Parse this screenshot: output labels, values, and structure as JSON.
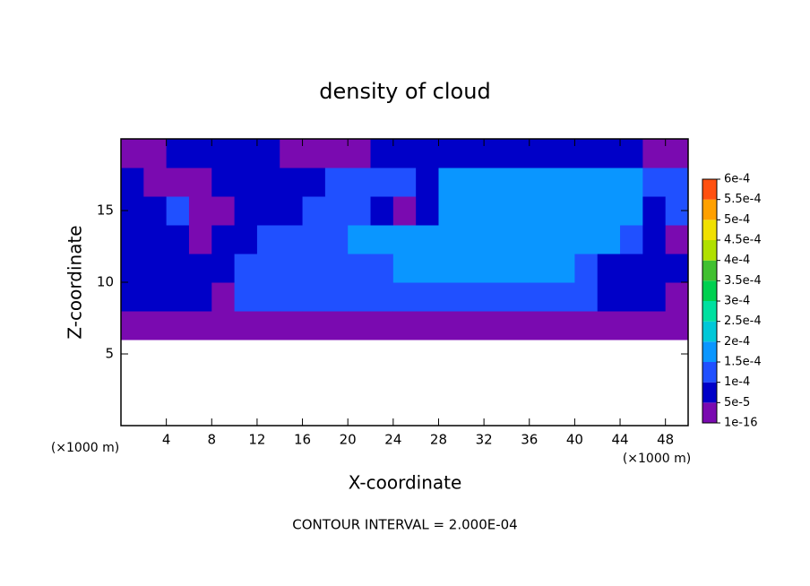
{
  "chart_data": {
    "type": "heatmap",
    "title": "density of cloud",
    "x_label": "X-coordinate",
    "y_label": "Z-coordinate",
    "x_unit": "(×1000 m)",
    "y_unit": "(×1000 m)",
    "footer": "CONTOUR INTERVAL = 2.000E-04",
    "xlim": [
      0,
      50
    ],
    "ylim": [
      0,
      20
    ],
    "xticks": [
      4,
      8,
      12,
      16,
      20,
      24,
      28,
      32,
      36,
      40,
      44,
      48
    ],
    "yticks": [
      5,
      10,
      15
    ],
    "x": [
      1,
      3,
      5,
      7,
      9,
      11,
      13,
      15,
      17,
      19,
      21,
      23,
      25,
      27,
      29,
      31,
      33,
      35,
      37,
      39,
      41,
      43,
      45,
      47,
      49
    ],
    "y": [
      1,
      3,
      5,
      7,
      9,
      11,
      13,
      15,
      17,
      19
    ],
    "z": [
      [
        null,
        null,
        null,
        null,
        null,
        null,
        null,
        null,
        null,
        null,
        null,
        null,
        null,
        null,
        null,
        null,
        null,
        null,
        null,
        null,
        null,
        null,
        null,
        null,
        null
      ],
      [
        null,
        null,
        null,
        null,
        null,
        null,
        null,
        null,
        null,
        null,
        null,
        null,
        null,
        null,
        null,
        null,
        null,
        null,
        null,
        null,
        null,
        null,
        null,
        null,
        null
      ],
      [
        null,
        null,
        null,
        null,
        null,
        null,
        null,
        null,
        null,
        null,
        null,
        null,
        null,
        null,
        null,
        null,
        null,
        null,
        null,
        null,
        null,
        null,
        null,
        null,
        null
      ],
      [
        3e-05,
        3e-05,
        3e-05,
        3e-05,
        3e-05,
        3e-05,
        3e-05,
        3e-05,
        3e-05,
        3e-05,
        3e-05,
        3e-05,
        3e-05,
        3e-05,
        3e-05,
        3e-05,
        3e-05,
        3e-05,
        3e-05,
        3e-05,
        3e-05,
        3e-05,
        3e-05,
        3e-05,
        3e-05
      ],
      [
        7e-05,
        7e-05,
        7e-05,
        7e-05,
        3e-05,
        0.00012,
        0.00012,
        0.00012,
        0.00012,
        0.00012,
        0.00012,
        0.00012,
        0.00012,
        0.00012,
        0.00012,
        0.00012,
        0.00012,
        0.00012,
        0.00012,
        0.00012,
        0.00012,
        7e-05,
        7e-05,
        7e-05,
        3e-05
      ],
      [
        7e-05,
        7e-05,
        7e-05,
        7e-05,
        7e-05,
        0.00012,
        0.00012,
        0.00012,
        0.00012,
        0.00012,
        0.00012,
        0.00012,
        0.00017,
        0.00017,
        0.00017,
        0.00017,
        0.00017,
        0.00017,
        0.00017,
        0.00017,
        0.00012,
        7e-05,
        7e-05,
        7e-05,
        7e-05
      ],
      [
        7e-05,
        7e-05,
        7e-05,
        3e-05,
        7e-05,
        7e-05,
        0.00012,
        0.00012,
        0.00012,
        0.00012,
        0.00017,
        0.00017,
        0.00017,
        0.00017,
        0.00017,
        0.00017,
        0.00017,
        0.00017,
        0.00017,
        0.00017,
        0.00017,
        0.00017,
        0.00012,
        7e-05,
        3e-05
      ],
      [
        7e-05,
        7e-05,
        0.00012,
        3e-05,
        3e-05,
        7e-05,
        7e-05,
        7e-05,
        0.00012,
        0.00012,
        0.00012,
        7e-05,
        3e-05,
        7e-05,
        0.00017,
        0.00017,
        0.00017,
        0.00017,
        0.00017,
        0.00017,
        0.00017,
        0.00017,
        0.00017,
        7e-05,
        0.00012
      ],
      [
        7e-05,
        3e-05,
        3e-05,
        3e-05,
        7e-05,
        7e-05,
        7e-05,
        7e-05,
        7e-05,
        0.00012,
        0.00012,
        0.00012,
        0.00012,
        7e-05,
        0.00017,
        0.00017,
        0.00017,
        0.00017,
        0.00017,
        0.00017,
        0.00017,
        0.00017,
        0.00017,
        0.00012,
        0.00012
      ],
      [
        3e-05,
        3e-05,
        7e-05,
        7e-05,
        7e-05,
        7e-05,
        7e-05,
        3e-05,
        3e-05,
        3e-05,
        3e-05,
        7e-05,
        7e-05,
        7e-05,
        7e-05,
        7e-05,
        7e-05,
        7e-05,
        7e-05,
        7e-05,
        7e-05,
        7e-05,
        7e-05,
        3e-05,
        3e-05
      ]
    ],
    "colorbar": {
      "levels": [
        1e-16,
        {
          "value": 5e-05,
          "label": "5e-5"
        },
        {
          "value": 0.0001,
          "label": "1e-4"
        },
        {
          "value": 0.00015,
          "label": "1.5e-4"
        },
        {
          "value": 0.0002,
          "label": "2e-4"
        },
        {
          "value": 0.00025,
          "label": "2.5e-4"
        },
        {
          "value": 0.0003,
          "label": "3e-4"
        },
        {
          "value": 0.00035,
          "label": "3.5e-4"
        },
        {
          "value": 0.0004,
          "label": "4e-4"
        },
        {
          "value": 0.00045,
          "label": "4.5e-4"
        },
        {
          "value": 0.0005,
          "label": "5e-4"
        },
        {
          "value": 0.00055,
          "label": "5.5e-4"
        },
        {
          "value": 0.0006,
          "label": "6e-4"
        }
      ],
      "colors": [
        "#7a0ab0",
        "#0000c8",
        "#2050ff",
        "#0a96ff",
        "#00c8d8",
        "#00e0a0",
        "#00d050",
        "#40c030",
        "#b0e000",
        "#f0e000",
        "#ffa000",
        "#ff5010",
        "#ff8888"
      ]
    }
  }
}
